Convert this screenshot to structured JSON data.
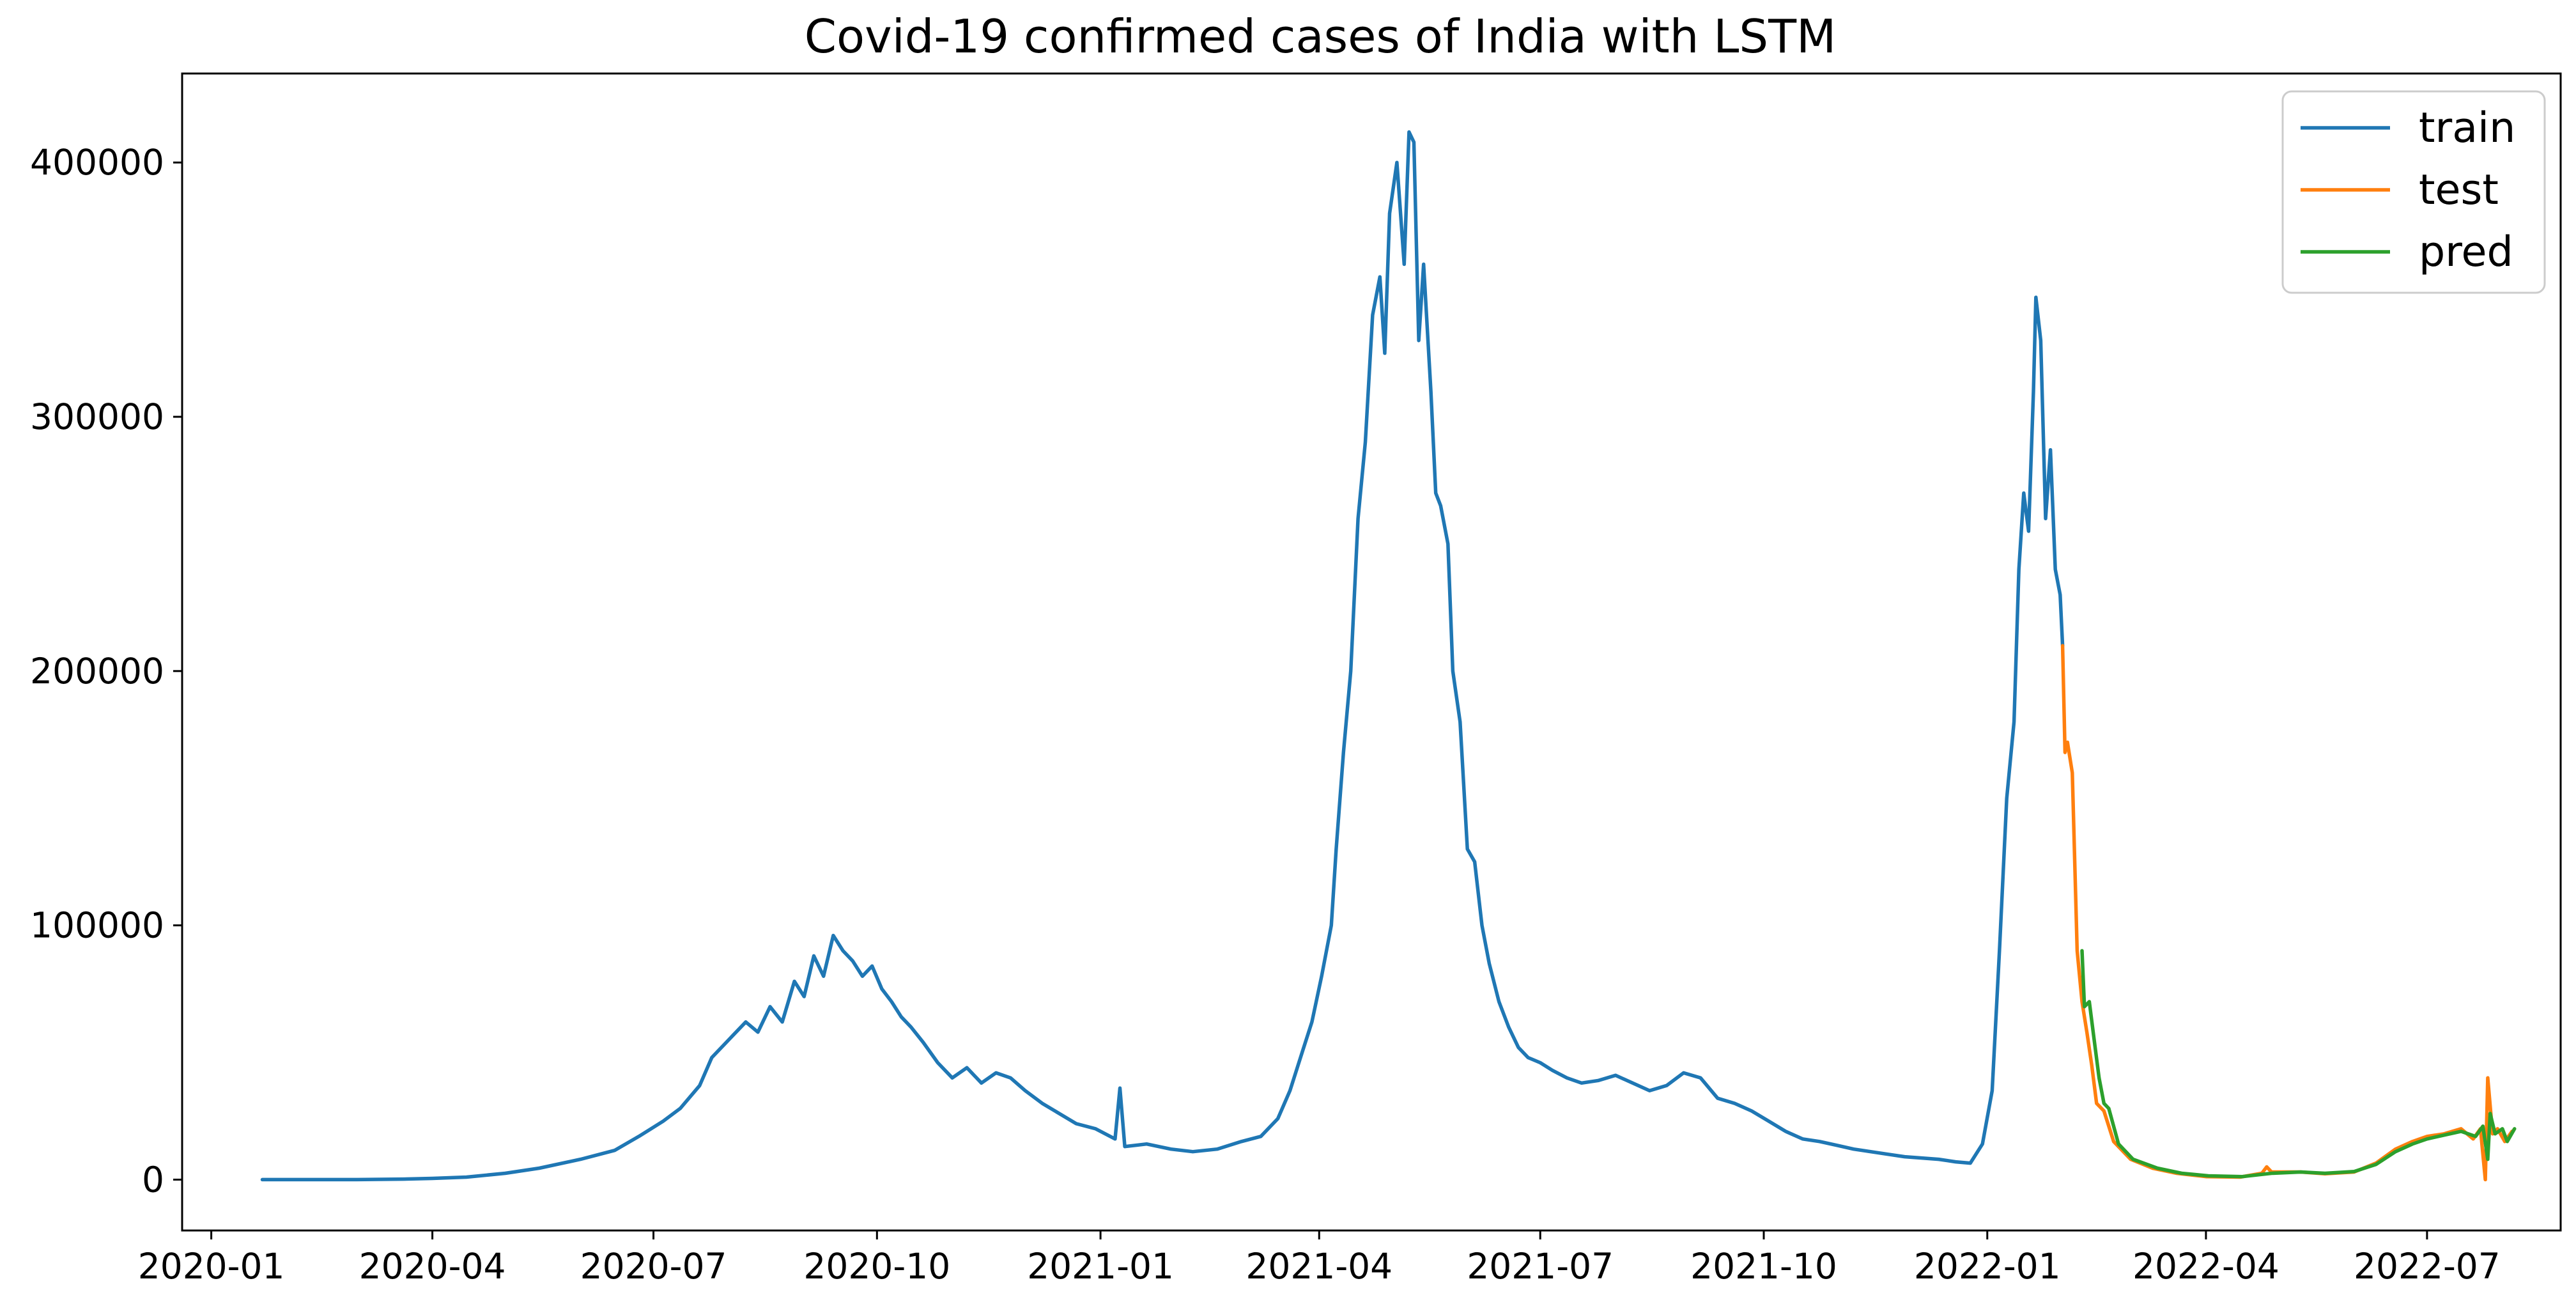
{
  "chart_data": {
    "type": "line",
    "title": "Covid-19 confirmed cases of India with LSTM",
    "xlabel": "",
    "ylabel": "",
    "xlim": [
      "2019-12-20",
      "2022-08-25"
    ],
    "ylim": [
      -20000,
      435000
    ],
    "x_ticks": [
      "2020-01",
      "2020-04",
      "2020-07",
      "2020-10",
      "2021-01",
      "2021-04",
      "2021-07",
      "2021-10",
      "2022-01",
      "2022-04",
      "2022-07"
    ],
    "y_ticks": [
      0,
      100000,
      200000,
      300000,
      400000
    ],
    "y_tick_labels": [
      "0",
      "100000",
      "200000",
      "300000",
      "400000"
    ],
    "grid": false,
    "legend": {
      "placement": "top-right",
      "entries": [
        "train",
        "test",
        "pred"
      ]
    },
    "series": [
      {
        "name": "train",
        "color": "#1f77b4",
        "points": [
          [
            "2020-01-22",
            0
          ],
          [
            "2020-02-15",
            0
          ],
          [
            "2020-03-01",
            10
          ],
          [
            "2020-03-20",
            200
          ],
          [
            "2020-04-01",
            500
          ],
          [
            "2020-04-15",
            1000
          ],
          [
            "2020-05-01",
            2500
          ],
          [
            "2020-05-15",
            4500
          ],
          [
            "2020-06-01",
            8000
          ],
          [
            "2020-06-15",
            11500
          ],
          [
            "2020-06-25",
            17000
          ],
          [
            "2020-07-05",
            23000
          ],
          [
            "2020-07-12",
            28000
          ],
          [
            "2020-07-20",
            37000
          ],
          [
            "2020-07-25",
            48000
          ],
          [
            "2020-08-01",
            55000
          ],
          [
            "2020-08-08",
            62000
          ],
          [
            "2020-08-13",
            58000
          ],
          [
            "2020-08-18",
            68000
          ],
          [
            "2020-08-23",
            62000
          ],
          [
            "2020-08-28",
            78000
          ],
          [
            "2020-09-01",
            72000
          ],
          [
            "2020-09-05",
            88000
          ],
          [
            "2020-09-09",
            80000
          ],
          [
            "2020-09-13",
            96000
          ],
          [
            "2020-09-17",
            90000
          ],
          [
            "2020-09-21",
            86000
          ],
          [
            "2020-09-25",
            80000
          ],
          [
            "2020-09-29",
            84000
          ],
          [
            "2020-10-03",
            75000
          ],
          [
            "2020-10-07",
            70000
          ],
          [
            "2020-10-11",
            64000
          ],
          [
            "2020-10-15",
            60000
          ],
          [
            "2020-10-20",
            54000
          ],
          [
            "2020-10-26",
            46000
          ],
          [
            "2020-11-01",
            40000
          ],
          [
            "2020-11-07",
            44000
          ],
          [
            "2020-11-13",
            38000
          ],
          [
            "2020-11-19",
            42000
          ],
          [
            "2020-11-25",
            40000
          ],
          [
            "2020-12-01",
            35000
          ],
          [
            "2020-12-08",
            30000
          ],
          [
            "2020-12-15",
            26000
          ],
          [
            "2020-12-22",
            22000
          ],
          [
            "2020-12-30",
            20000
          ],
          [
            "2021-01-07",
            16000
          ],
          [
            "2021-01-09",
            36000
          ],
          [
            "2021-01-11",
            13000
          ],
          [
            "2021-01-20",
            14000
          ],
          [
            "2021-01-30",
            12000
          ],
          [
            "2021-02-08",
            11000
          ],
          [
            "2021-02-18",
            12000
          ],
          [
            "2021-02-28",
            15000
          ],
          [
            "2021-03-08",
            17000
          ],
          [
            "2021-03-15",
            24000
          ],
          [
            "2021-03-20",
            35000
          ],
          [
            "2021-03-25",
            50000
          ],
          [
            "2021-03-29",
            62000
          ],
          [
            "2021-04-02",
            80000
          ],
          [
            "2021-04-06",
            100000
          ],
          [
            "2021-04-08",
            130000
          ],
          [
            "2021-04-11",
            168000
          ],
          [
            "2021-04-14",
            200000
          ],
          [
            "2021-04-17",
            260000
          ],
          [
            "2021-04-20",
            290000
          ],
          [
            "2021-04-23",
            340000
          ],
          [
            "2021-04-26",
            355000
          ],
          [
            "2021-04-28",
            325000
          ],
          [
            "2021-04-30",
            380000
          ],
          [
            "2021-05-03",
            400000
          ],
          [
            "2021-05-06",
            360000
          ],
          [
            "2021-05-08",
            412000
          ],
          [
            "2021-05-10",
            408000
          ],
          [
            "2021-05-12",
            330000
          ],
          [
            "2021-05-14",
            360000
          ],
          [
            "2021-05-17",
            310000
          ],
          [
            "2021-05-19",
            270000
          ],
          [
            "2021-05-21",
            265000
          ],
          [
            "2021-05-24",
            250000
          ],
          [
            "2021-05-26",
            200000
          ],
          [
            "2021-05-29",
            180000
          ],
          [
            "2021-06-01",
            130000
          ],
          [
            "2021-06-04",
            125000
          ],
          [
            "2021-06-07",
            100000
          ],
          [
            "2021-06-10",
            85000
          ],
          [
            "2021-06-14",
            70000
          ],
          [
            "2021-06-18",
            60000
          ],
          [
            "2021-06-22",
            52000
          ],
          [
            "2021-06-26",
            48000
          ],
          [
            "2021-07-01",
            46000
          ],
          [
            "2021-07-06",
            43000
          ],
          [
            "2021-07-12",
            40000
          ],
          [
            "2021-07-18",
            38000
          ],
          [
            "2021-07-25",
            39000
          ],
          [
            "2021-08-01",
            41000
          ],
          [
            "2021-08-08",
            38000
          ],
          [
            "2021-08-15",
            35000
          ],
          [
            "2021-08-22",
            37000
          ],
          [
            "2021-08-29",
            42000
          ],
          [
            "2021-09-05",
            40000
          ],
          [
            "2021-09-12",
            32000
          ],
          [
            "2021-09-19",
            30000
          ],
          [
            "2021-09-26",
            27000
          ],
          [
            "2021-10-03",
            23000
          ],
          [
            "2021-10-10",
            19000
          ],
          [
            "2021-10-17",
            16000
          ],
          [
            "2021-10-24",
            15000
          ],
          [
            "2021-10-31",
            13500
          ],
          [
            "2021-11-07",
            12000
          ],
          [
            "2021-11-14",
            11000
          ],
          [
            "2021-11-21",
            10000
          ],
          [
            "2021-11-28",
            9000
          ],
          [
            "2021-12-05",
            8500
          ],
          [
            "2021-12-12",
            8000
          ],
          [
            "2021-12-19",
            7000
          ],
          [
            "2021-12-25",
            6500
          ],
          [
            "2021-12-30",
            14000
          ],
          [
            "2022-01-03",
            35000
          ],
          [
            "2022-01-06",
            90000
          ],
          [
            "2022-01-09",
            150000
          ],
          [
            "2022-01-12",
            180000
          ],
          [
            "2022-01-14",
            240000
          ],
          [
            "2022-01-16",
            270000
          ],
          [
            "2022-01-18",
            255000
          ],
          [
            "2022-01-20",
            310000
          ],
          [
            "2022-01-21",
            347000
          ],
          [
            "2022-01-23",
            330000
          ],
          [
            "2022-01-25",
            260000
          ],
          [
            "2022-01-27",
            287000
          ],
          [
            "2022-01-29",
            240000
          ],
          [
            "2022-01-31",
            230000
          ],
          [
            "2022-02-01",
            210000
          ]
        ]
      },
      {
        "name": "test",
        "color": "#ff7f0e",
        "points": [
          [
            "2022-02-01",
            210000
          ],
          [
            "2022-02-02",
            168000
          ],
          [
            "2022-02-03",
            172000
          ],
          [
            "2022-02-05",
            160000
          ],
          [
            "2022-02-07",
            90000
          ],
          [
            "2022-02-09",
            70000
          ],
          [
            "2022-02-11",
            58000
          ],
          [
            "2022-02-13",
            45000
          ],
          [
            "2022-02-15",
            30000
          ],
          [
            "2022-02-18",
            27000
          ],
          [
            "2022-02-22",
            15000
          ],
          [
            "2022-03-01",
            8000
          ],
          [
            "2022-03-10",
            4500
          ],
          [
            "2022-03-20",
            2500
          ],
          [
            "2022-04-01",
            1200
          ],
          [
            "2022-04-15",
            1000
          ],
          [
            "2022-04-24",
            2500
          ],
          [
            "2022-04-26",
            5000
          ],
          [
            "2022-04-28",
            3000
          ],
          [
            "2022-05-10",
            3000
          ],
          [
            "2022-05-20",
            2300
          ],
          [
            "2022-06-01",
            3000
          ],
          [
            "2022-06-10",
            6500
          ],
          [
            "2022-06-18",
            12000
          ],
          [
            "2022-06-25",
            15000
          ],
          [
            "2022-07-01",
            17000
          ],
          [
            "2022-07-08",
            18000
          ],
          [
            "2022-07-15",
            20000
          ],
          [
            "2022-07-20",
            16000
          ],
          [
            "2022-07-23",
            20000
          ],
          [
            "2022-07-25",
            0
          ],
          [
            "2022-07-26",
            40000
          ],
          [
            "2022-07-28",
            18000
          ],
          [
            "2022-07-30",
            20000
          ],
          [
            "2022-08-02",
            15000
          ],
          [
            "2022-08-05",
            19000
          ]
        ]
      },
      {
        "name": "pred",
        "color": "#2ca02c",
        "points": [
          [
            "2022-02-09",
            90000
          ],
          [
            "2022-02-10",
            68000
          ],
          [
            "2022-02-12",
            70000
          ],
          [
            "2022-02-14",
            55000
          ],
          [
            "2022-02-16",
            40000
          ],
          [
            "2022-02-18",
            30000
          ],
          [
            "2022-02-20",
            28000
          ],
          [
            "2022-02-24",
            14000
          ],
          [
            "2022-03-02",
            8000
          ],
          [
            "2022-03-12",
            4500
          ],
          [
            "2022-03-22",
            2500
          ],
          [
            "2022-04-02",
            1500
          ],
          [
            "2022-04-16",
            1200
          ],
          [
            "2022-04-28",
            2500
          ],
          [
            "2022-05-10",
            3000
          ],
          [
            "2022-05-20",
            2500
          ],
          [
            "2022-06-01",
            3200
          ],
          [
            "2022-06-10",
            6000
          ],
          [
            "2022-06-18",
            11000
          ],
          [
            "2022-06-25",
            14000
          ],
          [
            "2022-07-01",
            16000
          ],
          [
            "2022-07-08",
            17500
          ],
          [
            "2022-07-15",
            19000
          ],
          [
            "2022-07-21",
            17000
          ],
          [
            "2022-07-24",
            21000
          ],
          [
            "2022-07-26",
            8000
          ],
          [
            "2022-07-27",
            26000
          ],
          [
            "2022-07-29",
            18000
          ],
          [
            "2022-08-01",
            20000
          ],
          [
            "2022-08-03",
            15000
          ],
          [
            "2022-08-06",
            20000
          ]
        ]
      }
    ]
  }
}
